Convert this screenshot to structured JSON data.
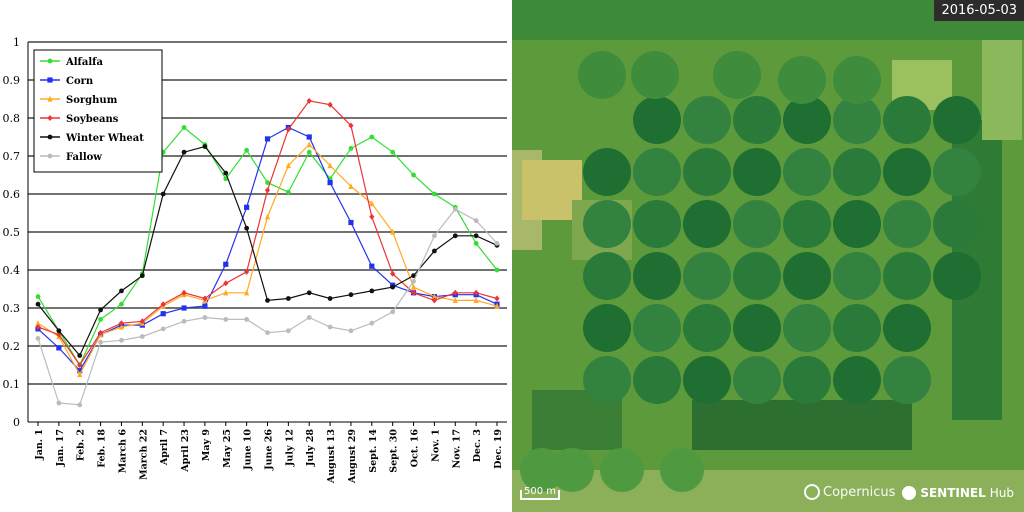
{
  "chart_data": {
    "type": "line",
    "ylim": [
      0,
      1
    ],
    "yticks": [
      "0",
      "0.1",
      "0.2",
      "0.3",
      "0.4",
      "0.5",
      "0.6",
      "0.7",
      "0.8",
      "0.9",
      "1"
    ],
    "categories": [
      "Jan. 1",
      "Jan. 17",
      "Feb. 2",
      "Feb. 18",
      "March 6",
      "March 22",
      "April 7",
      "April 23",
      "May 9",
      "May 25",
      "June 10",
      "June 26",
      "July 12",
      "July 28",
      "August 13",
      "August 29",
      "Sept. 14",
      "Sept. 30",
      "Oct. 16",
      "Nov. 1",
      "Nov. 17",
      "Dec. 3",
      "Dec. 19"
    ],
    "legend_position": "top-left",
    "grid": "horizontal",
    "series": [
      {
        "name": "Alfalfa",
        "color": "#33dd33",
        "marker": "circle",
        "values": [
          0.33,
          0.24,
          0.15,
          0.27,
          0.31,
          0.39,
          0.71,
          0.775,
          0.73,
          0.64,
          0.715,
          0.63,
          0.605,
          0.71,
          0.64,
          0.72,
          0.75,
          0.71,
          0.65,
          0.6,
          0.565,
          0.47,
          0.4
        ]
      },
      {
        "name": "Corn",
        "color": "#2233ee",
        "marker": "square",
        "values": [
          0.245,
          0.195,
          0.135,
          0.23,
          0.255,
          0.255,
          0.285,
          0.3,
          0.305,
          0.415,
          0.565,
          0.745,
          0.775,
          0.75,
          0.63,
          0.525,
          0.41,
          0.36,
          0.34,
          0.33,
          0.335,
          0.335,
          0.31
        ]
      },
      {
        "name": "Sorghum",
        "color": "#ffaa22",
        "marker": "triangle",
        "values": [
          0.26,
          0.225,
          0.125,
          0.23,
          0.25,
          0.26,
          0.305,
          0.335,
          0.32,
          0.34,
          0.34,
          0.54,
          0.675,
          0.73,
          0.675,
          0.62,
          0.575,
          0.5,
          0.355,
          0.33,
          0.32,
          0.32,
          0.305
        ]
      },
      {
        "name": "Soybeans",
        "color": "#ee3333",
        "marker": "diamond",
        "values": [
          0.25,
          0.23,
          0.15,
          0.235,
          0.26,
          0.265,
          0.31,
          0.34,
          0.325,
          0.365,
          0.395,
          0.61,
          0.77,
          0.845,
          0.835,
          0.78,
          0.54,
          0.39,
          0.34,
          0.32,
          0.34,
          0.34,
          0.325
        ]
      },
      {
        "name": "Winter Wheat",
        "color": "#111111",
        "marker": "circle",
        "values": [
          0.31,
          0.24,
          0.175,
          0.295,
          0.345,
          0.385,
          0.6,
          0.71,
          0.725,
          0.655,
          0.51,
          0.32,
          0.325,
          0.34,
          0.325,
          0.335,
          0.345,
          0.355,
          0.385,
          0.45,
          0.49,
          0.49,
          0.465
        ]
      },
      {
        "name": "Fallow",
        "color": "#bbbbbb",
        "marker": "circle",
        "values": [
          0.22,
          0.05,
          0.045,
          0.21,
          0.215,
          0.225,
          0.245,
          0.265,
          0.275,
          0.27,
          0.27,
          0.235,
          0.24,
          0.275,
          0.25,
          0.24,
          0.26,
          0.29,
          0.37,
          0.49,
          0.56,
          0.53,
          0.47
        ]
      }
    ]
  },
  "satellite": {
    "date": "2016-05-03",
    "scale_label": "500 m",
    "copernicus_label": "Copernicus",
    "sentinel_label_bold": "SENTINEL",
    "sentinel_label": "Hub"
  }
}
